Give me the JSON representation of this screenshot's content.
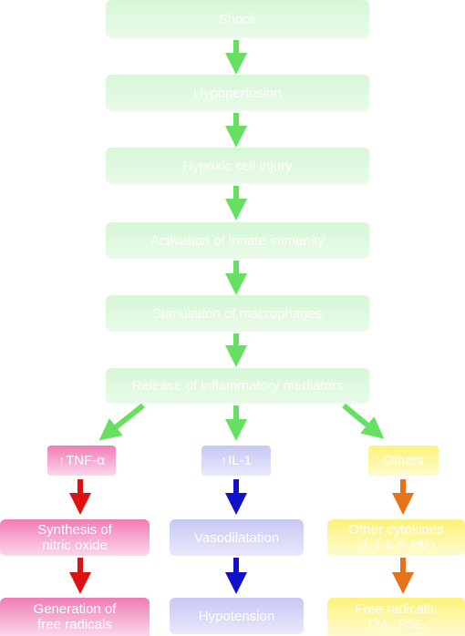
{
  "main_flow": {
    "shock": "Shock",
    "hypoperfusion": "Hypoperfusion",
    "hypoxic_cell_injury": "Hypoxic cell injury",
    "innate_immunity": "Activation of innate immunity",
    "macrophages": "Stimulation of macrophages",
    "mediators": "Release of inflammatory mediators"
  },
  "branches": {
    "tnf": {
      "up_arrow": "↑",
      "label": "TNF-α",
      "step1_line1": "Synthesis of",
      "step1_line2": "nitric oxide",
      "step2_line1": "Generation of",
      "step2_line2": "free radicals"
    },
    "il1": {
      "up_arrow": "↑",
      "label": "IL-1",
      "step1": "Vasodilatation",
      "step2": "Hypotension"
    },
    "others": {
      "label": "Others",
      "step1_line1": "Other cytokines",
      "step1_line2": "(IL-6, IL-8, PAF)",
      "step2_line1": "Free radicals,",
      "step2_line2": "TXA₂, PGE₂"
    }
  },
  "colors": {
    "green_arrow": "#66e060",
    "red_arrow": "#dd1111",
    "blue_arrow": "#1111cc",
    "orange_arrow": "#e8721a"
  }
}
